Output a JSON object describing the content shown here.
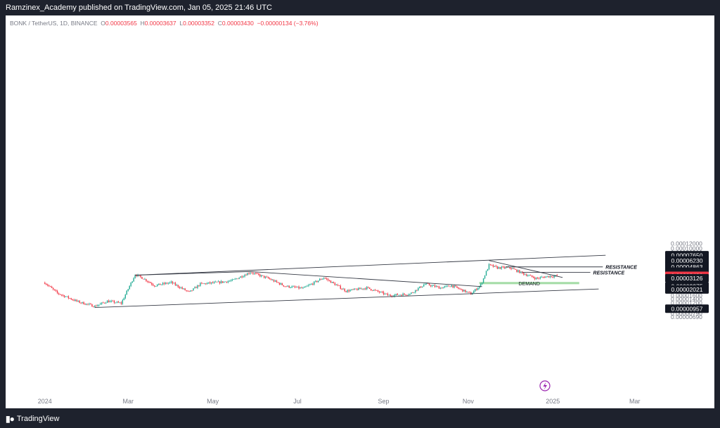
{
  "header": {
    "published_text": "Ramzinex_Academy published on TradingView.com, Jan 05, 2025 21:46 UTC"
  },
  "legend": {
    "symbol": "BONK / TetherUS, 1D, BINANCE",
    "o_label": "O",
    "o_value": "0.00003565",
    "h_label": "H",
    "h_value": "0.00003637",
    "l_label": "L",
    "l_value": "0.00003352",
    "c_label": "C",
    "c_value": "0.00003430",
    "change": "−0.00000134 (−3.76%)"
  },
  "footer": {
    "brand": "TradingView"
  },
  "colors": {
    "up": "#22ab94",
    "down": "#f23645",
    "demand_fill": "#a5dca7",
    "axis_text": "#787b86"
  },
  "chart_data": {
    "type": "candlestick",
    "y_scale": "log",
    "x_tick_labels": [
      "2024",
      "Mar",
      "May",
      "Jul",
      "Sep",
      "Nov",
      "2025",
      "Mar"
    ],
    "y_tick_labels": [
      "0.00012000",
      "0.00010000",
      "0.00008500",
      "0.00007000",
      "0.00005800",
      "0.00005000",
      "0.00004200",
      "0.00003500",
      "0.00003000",
      "0.00002600",
      "0.00002200",
      "0.00001900",
      "0.00001600",
      "0.00001400",
      "0.00001200",
      "0.00001050",
      "0.00000910",
      "0.00000790",
      "0.00000690"
    ],
    "price_badges": [
      {
        "label": "0.00007650",
        "value": 7.65e-05,
        "style": "dark"
      },
      {
        "label": "0.00006230",
        "value": 6.23e-05,
        "style": "dark"
      },
      {
        "label": "0.00004863",
        "value": 4.863e-05,
        "style": "dark"
      },
      {
        "label": "0.00004045",
        "value": 4.045e-05,
        "style": "dark"
      },
      {
        "label": "0.00003921",
        "value": 3.921e-05,
        "style": "dark"
      },
      {
        "label": "0.00003623",
        "value": 3.623e-05,
        "style": "dark"
      },
      {
        "label": "0.00003430",
        "value": 3.43e-05,
        "style": "red"
      },
      {
        "label": "0.00003126",
        "value": 3.126e-05,
        "style": "dark"
      },
      {
        "label": "0.00002275",
        "value": 2.275e-05,
        "style": "dark"
      },
      {
        "label": "0.00002021",
        "value": 2.021e-05,
        "style": "dark"
      },
      {
        "label": "0.00000957",
        "value": 9.57e-06,
        "style": "dark"
      }
    ],
    "annotations": {
      "resistance_1": "RESISTANCE",
      "resistance_2": "RESISTANCE",
      "demand": "DEMAND"
    },
    "approx_close_path": [
      [
        "2024-01-01",
        2.62e-05
      ],
      [
        "2024-01-10",
        1.75e-05
      ],
      [
        "2024-01-25",
        1.25e-05
      ],
      [
        "2024-02-06",
        1.05e-05
      ],
      [
        "2024-02-15",
        1.28e-05
      ],
      [
        "2024-02-25",
        1.18e-05
      ],
      [
        "2024-03-06",
        3.6e-05
      ],
      [
        "2024-03-12",
        3.1e-05
      ],
      [
        "2024-03-20",
        2.35e-05
      ],
      [
        "2024-04-01",
        2.65e-05
      ],
      [
        "2024-04-14",
        1.8e-05
      ],
      [
        "2024-04-22",
        2.5e-05
      ],
      [
        "2024-05-05",
        2.65e-05
      ],
      [
        "2024-05-15",
        2.85e-05
      ],
      [
        "2024-05-28",
        3.95e-05
      ],
      [
        "2024-06-10",
        3.1e-05
      ],
      [
        "2024-06-22",
        2.3e-05
      ],
      [
        "2024-07-05",
        2.1e-05
      ],
      [
        "2024-07-20",
        3.2e-05
      ],
      [
        "2024-08-05",
        1.9e-05
      ],
      [
        "2024-08-20",
        2.15e-05
      ],
      [
        "2024-09-05",
        1.6e-05
      ],
      [
        "2024-09-20",
        1.7e-05
      ],
      [
        "2024-10-01",
        2.5e-05
      ],
      [
        "2024-10-12",
        2.15e-05
      ],
      [
        "2024-10-20",
        2.35e-05
      ],
      [
        "2024-11-03",
        1.7e-05
      ],
      [
        "2024-11-10",
        2.4e-05
      ],
      [
        "2024-11-16",
        5.2e-05
      ],
      [
        "2024-11-22",
        4.7e-05
      ],
      [
        "2024-12-01",
        4.7e-05
      ],
      [
        "2024-12-10",
        3.8e-05
      ],
      [
        "2024-12-20",
        3.1e-05
      ],
      [
        "2024-12-28",
        3.35e-05
      ],
      [
        "2025-01-05",
        3.43e-05
      ]
    ]
  }
}
